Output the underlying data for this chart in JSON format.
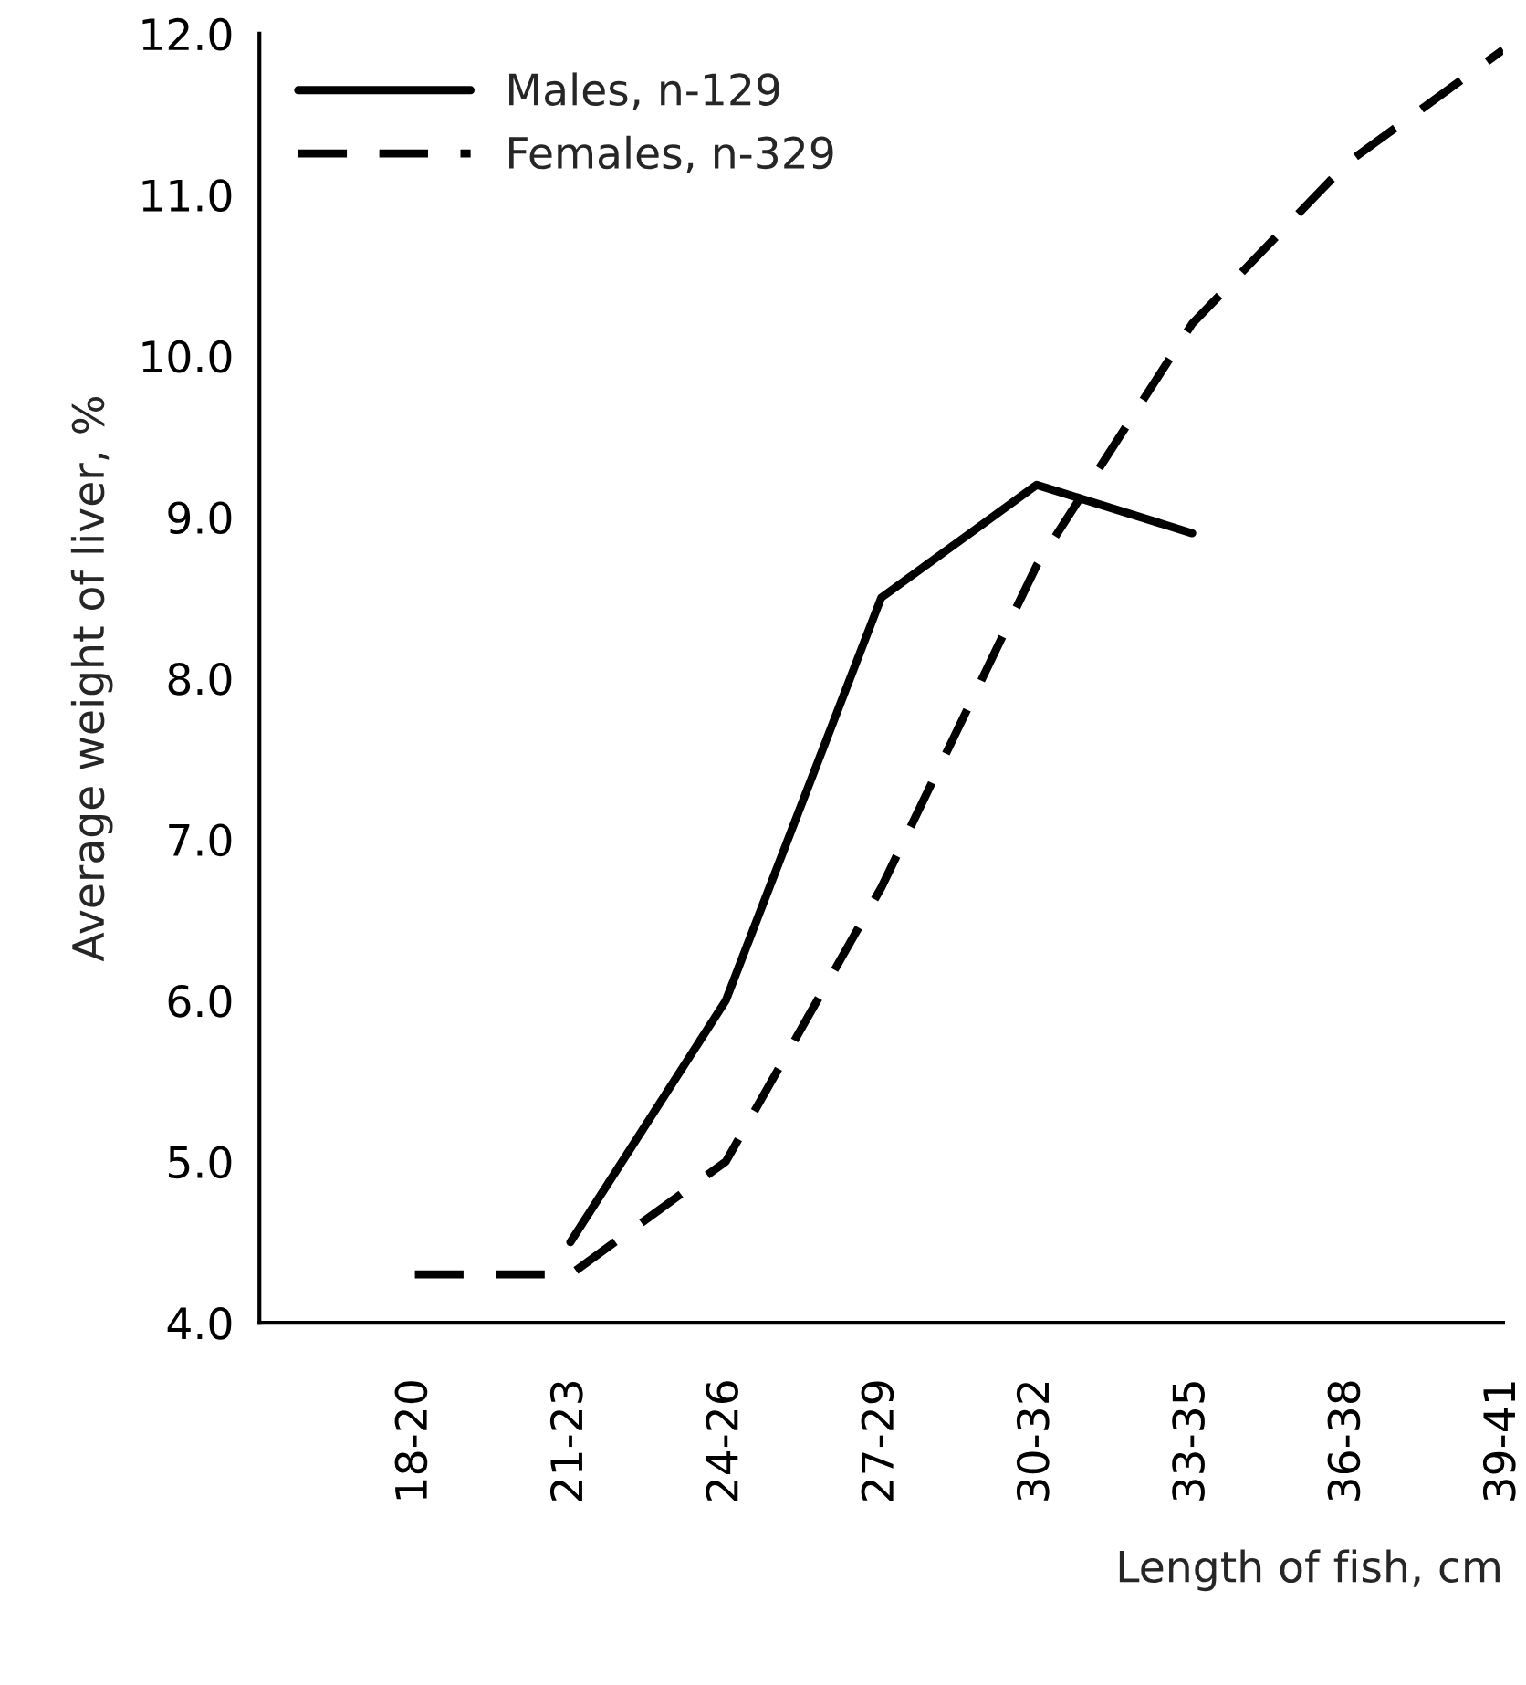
{
  "chart_data": {
    "type": "line",
    "xlabel": "Length of fish, cm",
    "ylabel": "Average weight of liver, %",
    "categories": [
      "18-20",
      "21-23",
      "24-26",
      "27-29",
      "30-32",
      "33-35",
      "36-38",
      "39-41"
    ],
    "series": [
      {
        "name": "Males, n-129",
        "color": "#000000",
        "line_style": "solid",
        "values": [
          null,
          4.5,
          6.0,
          8.5,
          9.2,
          8.9,
          null,
          null
        ]
      },
      {
        "name": "Females, n-329",
        "color": "#000000",
        "line_style": "dashed",
        "values": [
          4.3,
          4.3,
          5.0,
          6.7,
          8.7,
          10.2,
          11.2,
          11.9
        ]
      }
    ],
    "ylim": [
      4.0,
      12.0
    ],
    "yticks": [
      {
        "value": 4,
        "label": "4.0"
      },
      {
        "value": 5,
        "label": "5.0"
      },
      {
        "value": 6,
        "label": "6.0"
      },
      {
        "value": 7,
        "label": "7.0"
      },
      {
        "value": 8,
        "label": "8.0"
      },
      {
        "value": 9,
        "label": "9.0"
      },
      {
        "value": 10,
        "label": "10.0"
      },
      {
        "value": 11,
        "label": "11.0"
      },
      {
        "value": 12,
        "label": "12.0"
      }
    ],
    "grid": false,
    "legend": "top left",
    "marker": "none"
  }
}
